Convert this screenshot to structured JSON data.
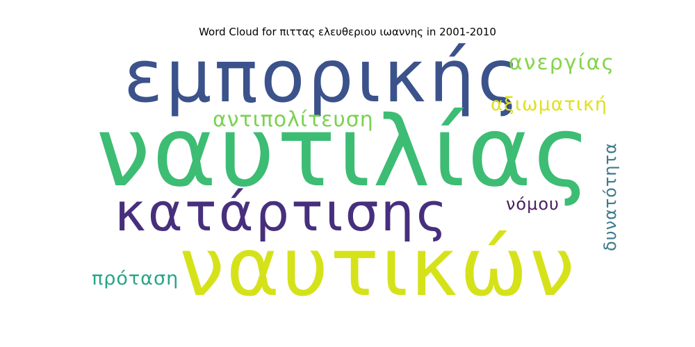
{
  "title": "Word Cloud for πιττας ελευθεριου ιωαννης in 2001-2010",
  "words": [
    {
      "text": "εμπορικής",
      "color": "#3b528b"
    },
    {
      "text": "ναυτιλίας",
      "color": "#3dbc74"
    },
    {
      "text": "κατάρτισης",
      "color": "#472f7d"
    },
    {
      "text": "ναυτικών",
      "color": "#d5e21a"
    },
    {
      "text": "ανεργίας",
      "color": "#84d44b"
    },
    {
      "text": "αξιωματική",
      "color": "#e0e024"
    },
    {
      "text": "αντιπολίτευση",
      "color": "#7ad151"
    },
    {
      "text": "δυνατότητα",
      "color": "#3e7a8c"
    },
    {
      "text": "νόμου",
      "color": "#4a1d5e"
    },
    {
      "text": "πρόταση",
      "color": "#25a585"
    }
  ]
}
